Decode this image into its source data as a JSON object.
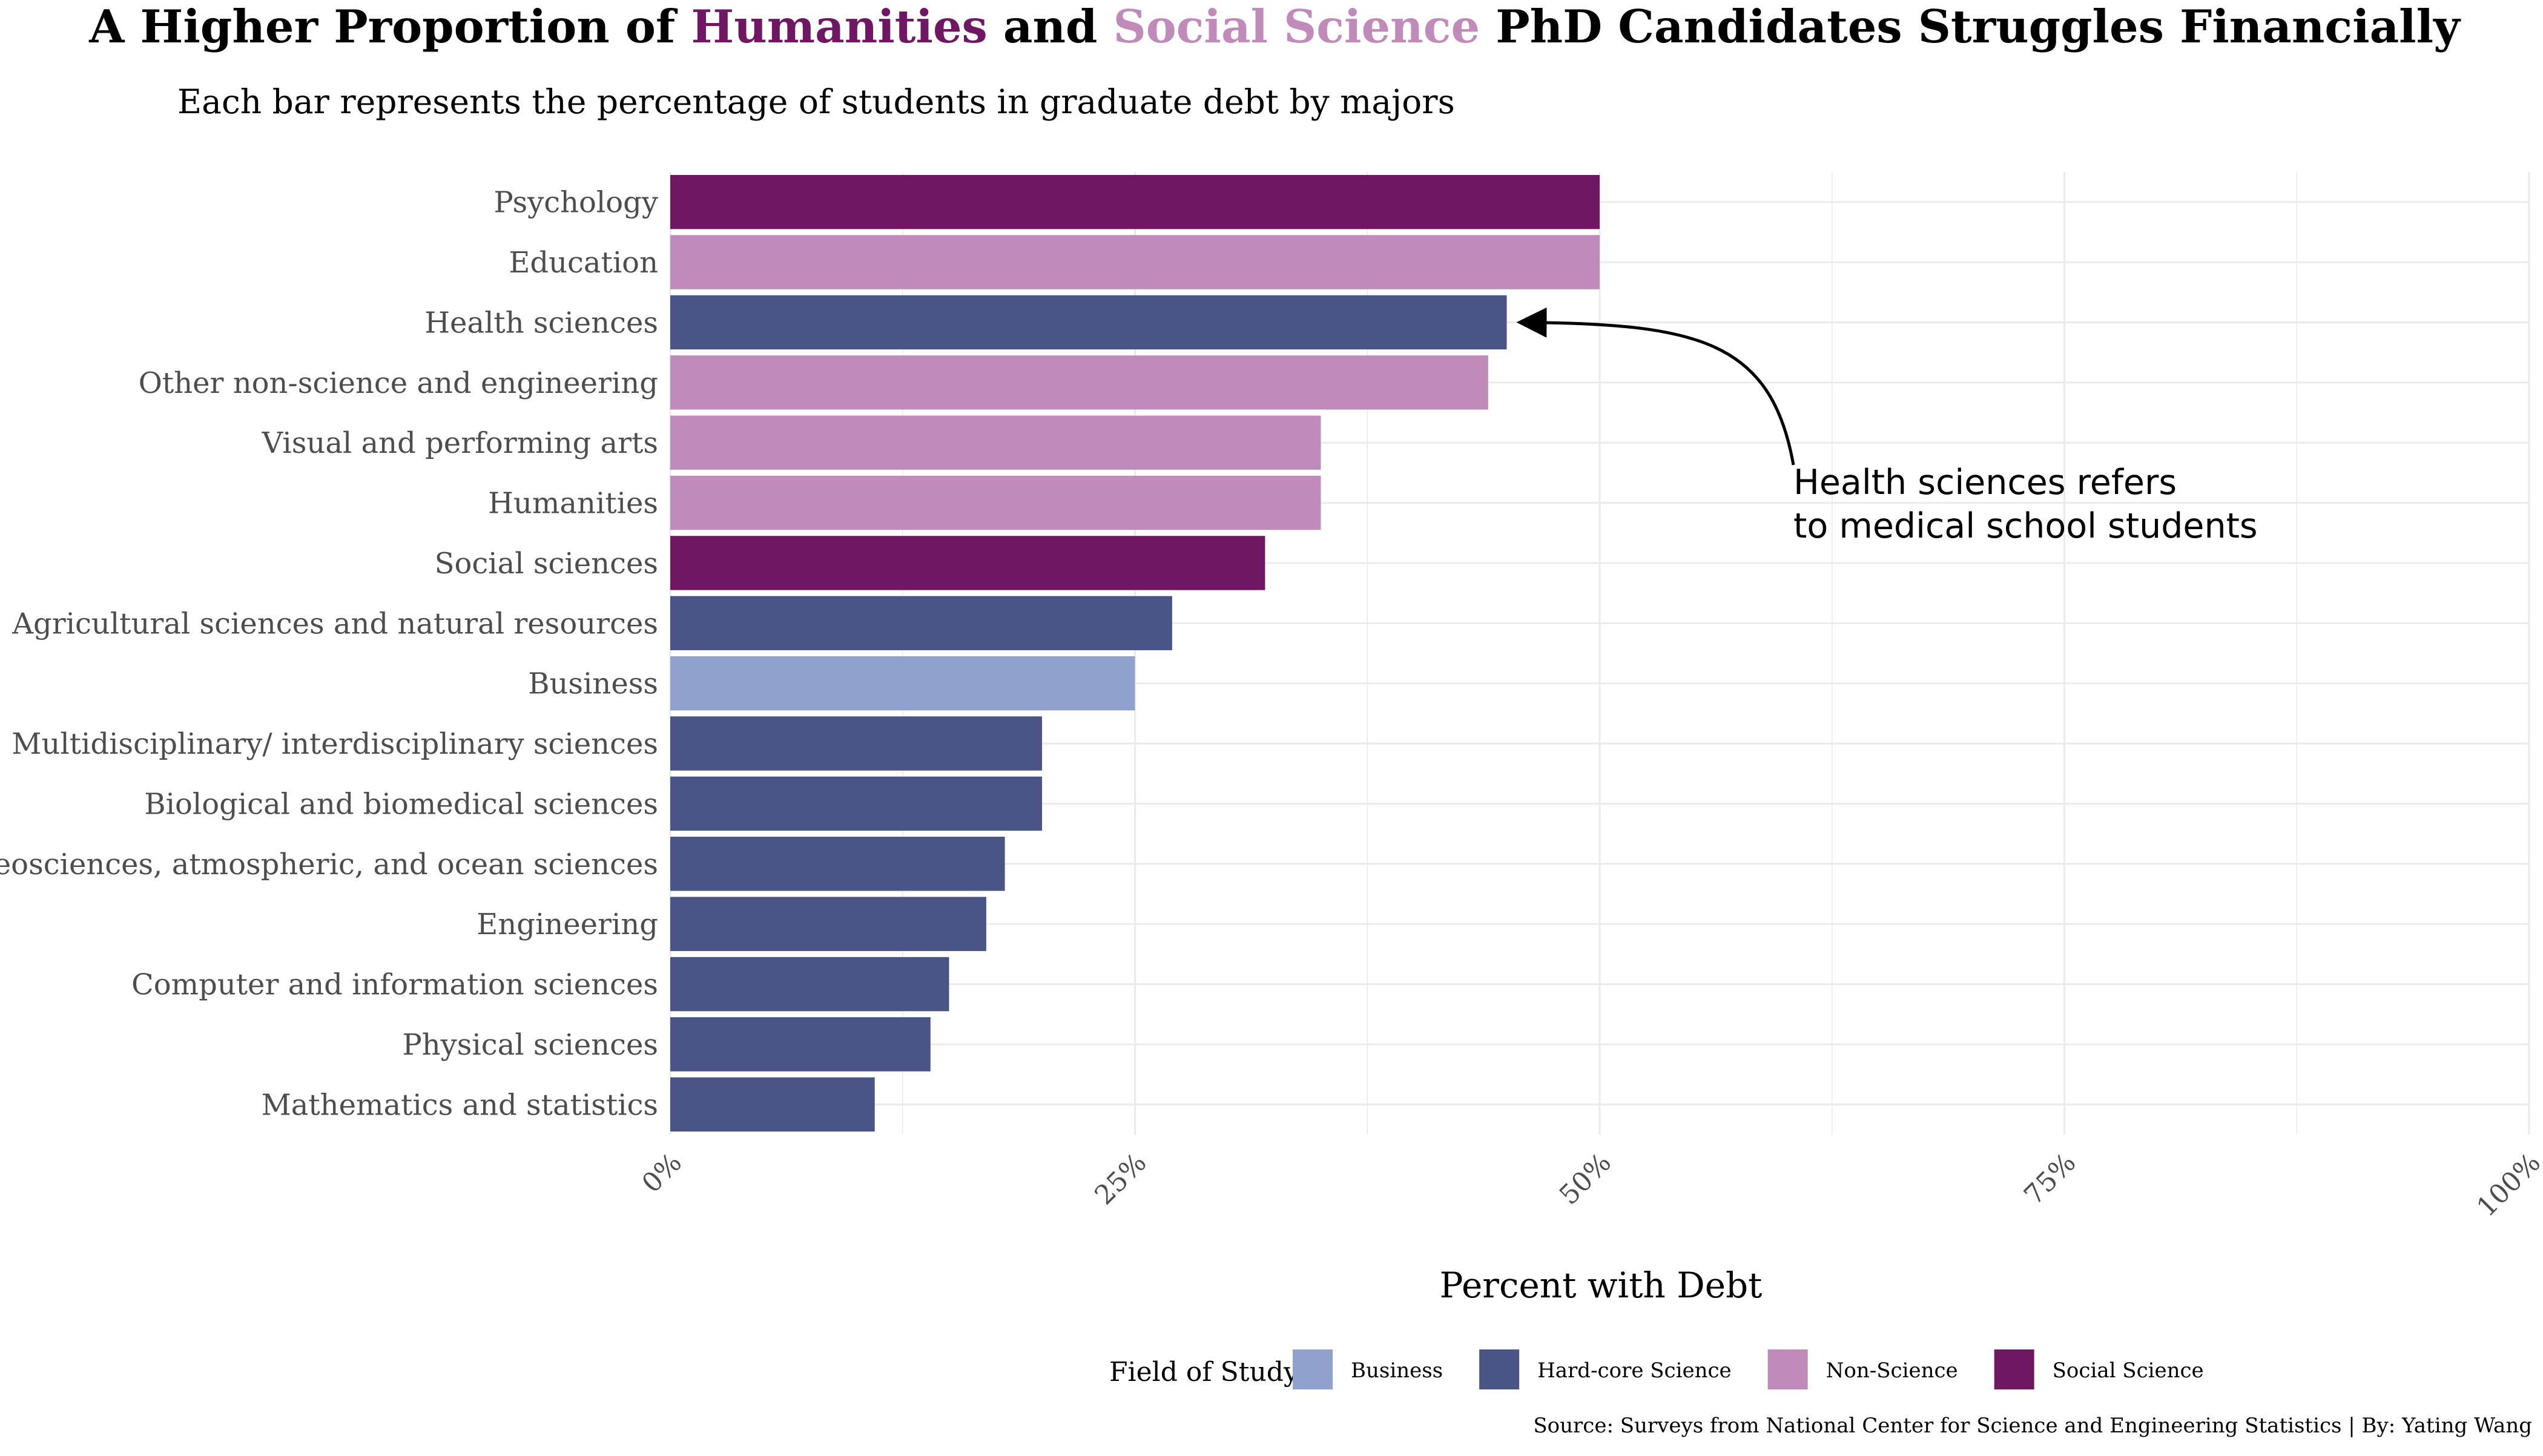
{
  "chart_data": {
    "type": "bar",
    "orientation": "horizontal",
    "title": {
      "prefix": "A Higher Proportion of ",
      "highlight1": "Humanities",
      "middle": " and ",
      "highlight2": "Social Science",
      "suffix": " PhD Candidates Struggles Financially"
    },
    "subtitle": "Each bar represents the percentage of students in graduate debt by majors",
    "xlabel": "Percent with Debt",
    "ylabel": "",
    "xlim": [
      0,
      100
    ],
    "x_ticks": [
      0,
      25,
      50,
      75,
      100
    ],
    "x_tick_labels": [
      "0%",
      "25%",
      "50%",
      "75%",
      "100%"
    ],
    "grid": true,
    "categories": [
      "Psychology",
      "Education",
      "Health sciences",
      "Other non-science and engineering",
      "Visual and performing arts",
      "Humanities",
      "Social sciences",
      "Agricultural sciences and natural resources",
      "Business",
      "Multidisciplinary/ interdisciplinary sciences",
      "Biological and biomedical sciences",
      "Geosciences, atmospheric, and ocean sciences",
      "Engineering",
      "Computer and information sciences",
      "Physical sciences",
      "Mathematics and statistics"
    ],
    "values": [
      50,
      50,
      45,
      44,
      35,
      35,
      32,
      27,
      25,
      20,
      20,
      18,
      17,
      15,
      14,
      11
    ],
    "groups": [
      "Social Science",
      "Non-Science",
      "Hard-core Science",
      "Non-Science",
      "Non-Science",
      "Non-Science",
      "Social Science",
      "Hard-core Science",
      "Business",
      "Hard-core Science",
      "Hard-core Science",
      "Hard-core Science",
      "Hard-core Science",
      "Hard-core Science",
      "Hard-core Science",
      "Hard-core Science"
    ],
    "legend": {
      "title": "Field of Study",
      "position": "bottom",
      "items": [
        {
          "name": "Business",
          "color": "#8fa1cc"
        },
        {
          "name": "Hard-core Science",
          "color": "#485586"
        },
        {
          "name": "Non-Science",
          "color": "#c08bbb"
        },
        {
          "name": "Social Science",
          "color": "#701763"
        }
      ]
    },
    "annotation": {
      "lines": [
        "Health sciences refers",
        "to medical school students"
      ],
      "target_category": "Health sciences"
    },
    "caption": "Source: Surveys from National Center for Science and Engineering Statistics | By: Yating Wang"
  },
  "colors": {
    "background": "#ffffff",
    "grid": "#ebebeb",
    "title_text": "#000000",
    "axis_text": "#4d4d4d",
    "humanities_highlight": "#701763",
    "social_science_highlight": "#c08bbb",
    "arrow": "#000000"
  }
}
